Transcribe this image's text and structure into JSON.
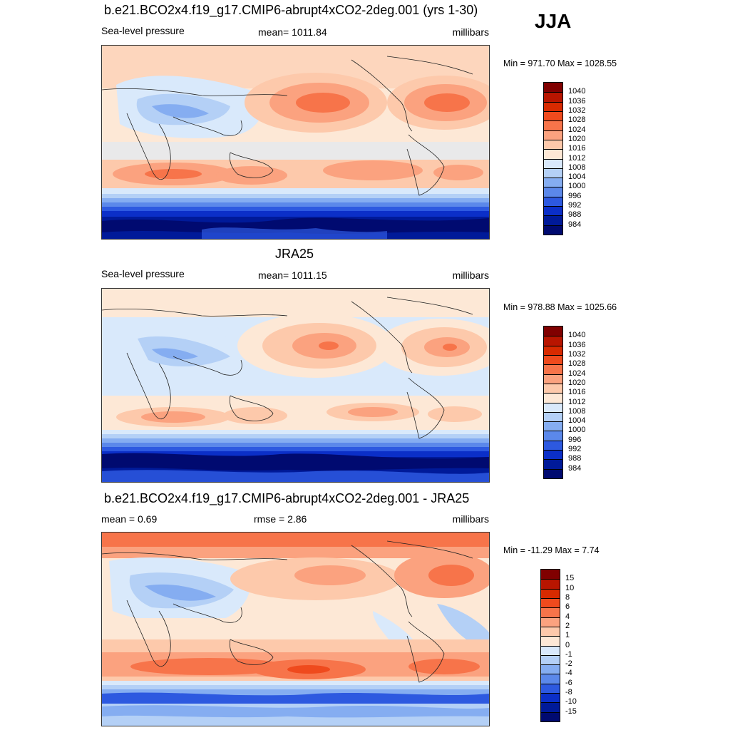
{
  "season": "JJA",
  "levels_psl": [
    "1040",
    "1036",
    "1032",
    "1028",
    "1024",
    "1020",
    "1016",
    "1012",
    "1008",
    "1004",
    "1000",
    "996",
    "992",
    "988",
    "984"
  ],
  "levels_diff": [
    "15",
    "10",
    "8",
    "6",
    "4",
    "2",
    "1",
    "0",
    "-1",
    "-2",
    "-4",
    "-6",
    "-8",
    "-10",
    "-15"
  ],
  "colors": [
    "#800000",
    "#b81500",
    "#d82a00",
    "#ef4a1d",
    "#f7744a",
    "#fba27f",
    "#fdc9ab",
    "#fde8d6",
    "#d9e9fb",
    "#b4d0f6",
    "#85adf1",
    "#5b88ea",
    "#2d59e0",
    "#0b2fc8",
    "#001a99",
    "#000a70"
  ],
  "panels": [
    {
      "title": "b.e21.BCO2x4.f19_g17.CMIP6-abrupt4xCO2-2deg.001 (yrs 1-30)",
      "left_label": "Sea-level pressure",
      "center_label": "mean= 1011.84",
      "right_label": "millibars",
      "minmax": "Min = 971.70 Max = 1028.55"
    },
    {
      "title": "JRA25",
      "left_label": "Sea-level pressure",
      "center_label": "mean= 1011.15",
      "right_label": "millibars",
      "minmax": "Min = 978.88 Max = 1025.66"
    },
    {
      "title": "b.e21.BCO2x4.f19_g17.CMIP6-abrupt4xCO2-2deg.001 - JRA25",
      "left_label": "mean =   0.69",
      "center_label": "rmse =   2.86",
      "right_label": "millibars",
      "minmax": "Min = -11.29 Max =   7.74"
    }
  ]
}
